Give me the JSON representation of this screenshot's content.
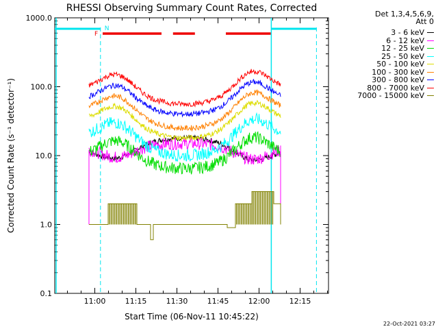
{
  "chart_data": {
    "type": "line",
    "title": "RHESSI Observing Summary Count Rates, Corrected",
    "xlabel": "Start Time (06-Nov-11 10:45:22)",
    "ylabel": "Corrected Count Rate (s⁻¹ detector⁻¹)",
    "yscale": "log",
    "ylim": [
      0.1,
      1000.0
    ],
    "xlim_minutes_after_10_45_22": [
      0,
      100
    ],
    "y_tick_labels": [
      "0.1",
      "1.0",
      "10.0",
      "100.0",
      "1000.0"
    ],
    "x_tick_labels": [
      "11:00",
      "11:15",
      "11:30",
      "11:45",
      "12:00",
      "12:15"
    ],
    "legend_title": [
      "Det 1,3,4,5,6,9,",
      "Att 0"
    ],
    "series": [
      {
        "name": "3 - 6 keV",
        "color": "#000000",
        "y_start": 13,
        "y_mid": 18,
        "y_end": 11
      },
      {
        "name": "6 - 12 keV",
        "color": "#ff00ff",
        "y_start": 12,
        "y_mid": 15,
        "y_end": 14
      },
      {
        "name": "12 - 25 keV",
        "color": "#00dd00",
        "y_start": 9,
        "y_mid": 6.5,
        "y_end": 11
      },
      {
        "name": "25 - 50 keV",
        "color": "#00ffff",
        "y_start": 16,
        "y_mid": 10,
        "y_end": 22
      },
      {
        "name": "50 - 100 keV",
        "color": "#dddd00",
        "y_start": 28,
        "y_mid": 18,
        "y_end": 37
      },
      {
        "name": "100 - 300 keV",
        "color": "#ff8000",
        "y_start": 40,
        "y_mid": 25,
        "y_end": 52
      },
      {
        "name": "300 - 800 keV",
        "color": "#0000ff",
        "y_start": 58,
        "y_mid": 40,
        "y_end": 70
      },
      {
        "name": "800 - 7000 keV",
        "color": "#ff0000",
        "y_start": 85,
        "y_mid": 56,
        "y_end": 100
      },
      {
        "name": "7000 - 15000 keV",
        "color": "#808000",
        "y_start": 1.0,
        "y_mid": 1.0,
        "y_end": 1.0
      }
    ],
    "flags": [
      {
        "label": "F",
        "color": "#ff0000"
      },
      {
        "label": "N",
        "color": "#00cccc"
      }
    ],
    "grid": false,
    "legend_position": "top-right"
  },
  "footer": "22-Oct-2021 03:27"
}
